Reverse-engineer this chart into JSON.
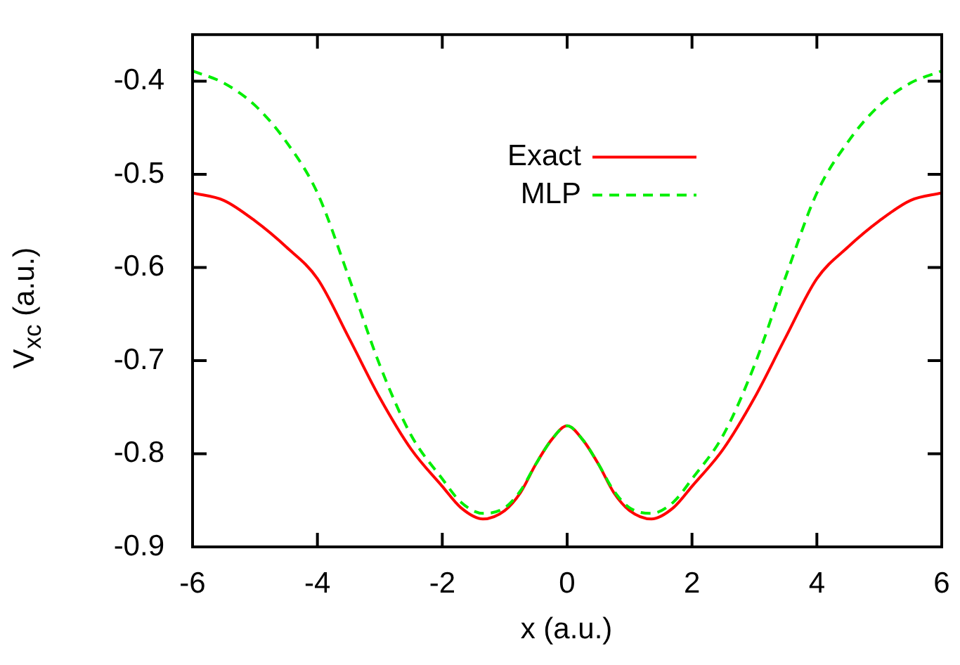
{
  "chart_data": {
    "type": "line",
    "xlabel": "x (a.u.)",
    "ylabel": "V$_{xc}$ (a.u.)",
    "xlim": [
      -6,
      6
    ],
    "xticks": [
      -6,
      -4,
      -2,
      0,
      2,
      4,
      6
    ],
    "ylim": [
      -0.9,
      -0.35
    ],
    "yticks": [
      -0.9,
      -0.8,
      -0.7,
      -0.6,
      -0.5,
      -0.4
    ],
    "grid": false,
    "legend": "center",
    "marker": "none",
    "x": [
      -6,
      -5.5,
      -5,
      -4.5,
      -4,
      -3.5,
      -3,
      -2.5,
      -2,
      -1.7,
      -1.35,
      -1,
      -0.75,
      -0.5,
      -0.25,
      0,
      0.25,
      0.5,
      0.75,
      1,
      1.35,
      1.7,
      2,
      2.5,
      3,
      3.5,
      4,
      4.5,
      5,
      5.5,
      6
    ],
    "series": [
      {
        "name": "Exact",
        "color": "#ff0000",
        "line_style": "solid",
        "values": [
          -0.52,
          -0.528,
          -0.55,
          -0.578,
          -0.612,
          -0.675,
          -0.74,
          -0.795,
          -0.835,
          -0.858,
          -0.87,
          -0.861,
          -0.842,
          -0.811,
          -0.785,
          -0.77,
          -0.785,
          -0.811,
          -0.842,
          -0.861,
          -0.87,
          -0.858,
          -0.835,
          -0.795,
          -0.74,
          -0.675,
          -0.612,
          -0.578,
          -0.55,
          -0.528,
          -0.52
        ]
      },
      {
        "name": "MLP",
        "color": "#00ee00",
        "line_style": "dashed",
        "values": [
          -0.389,
          -0.402,
          -0.426,
          -0.465,
          -0.52,
          -0.61,
          -0.705,
          -0.78,
          -0.827,
          -0.852,
          -0.864,
          -0.858,
          -0.84,
          -0.811,
          -0.785,
          -0.77,
          -0.785,
          -0.811,
          -0.84,
          -0.858,
          -0.864,
          -0.852,
          -0.827,
          -0.78,
          -0.705,
          -0.61,
          -0.52,
          -0.465,
          -0.426,
          -0.402,
          -0.389
        ]
      }
    ]
  }
}
